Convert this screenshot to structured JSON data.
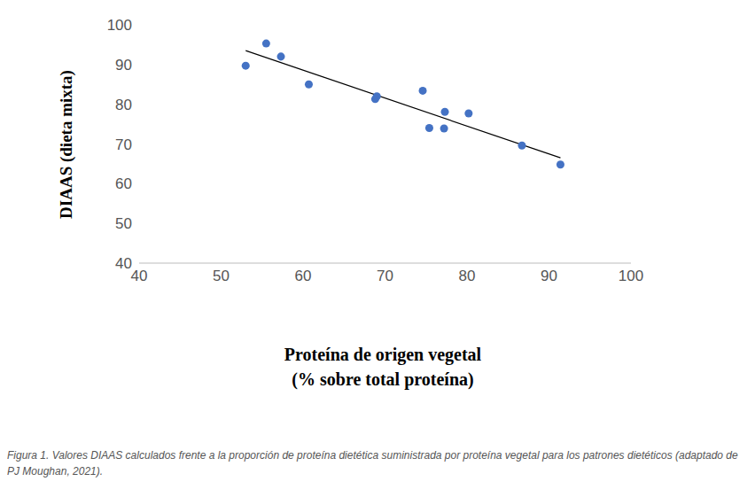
{
  "chart_data": {
    "type": "scatter",
    "xlabel": [
      "Proteína de origen vegetal",
      "(% sobre total proteína)"
    ],
    "ylabel": "DIAAS (dieta mixta)",
    "caption": "Figura 1. Valores DIAAS calculados frente a la proporción de proteína dietética suministrada por proteína vegetal para los patrones dietéticos (adaptado de PJ Moughan, 2021).",
    "x": [
      53,
      55.5,
      57.3,
      60.7,
      68.8,
      69,
      74.6,
      75.4,
      77.3,
      77.2,
      80.2,
      86.7,
      91.4
    ],
    "values": [
      89.7,
      95.3,
      92,
      85,
      81.3,
      82,
      83.4,
      74,
      78.1,
      73.9,
      77.7,
      69.6,
      64.8
    ],
    "color": "#4472c4",
    "marker": "circle",
    "trend_line": {
      "x": [
        53,
        91.4
      ],
      "values": [
        93.5,
        66.5
      ],
      "color": "#000000",
      "line_style": "solid"
    },
    "xlim": [
      40,
      100
    ],
    "xticks": [
      40,
      50,
      60,
      70,
      80,
      90,
      100
    ],
    "ylim": [
      40,
      100
    ],
    "yticks": [
      40,
      50,
      60,
      70,
      80,
      90,
      100
    ],
    "grid": false
  }
}
